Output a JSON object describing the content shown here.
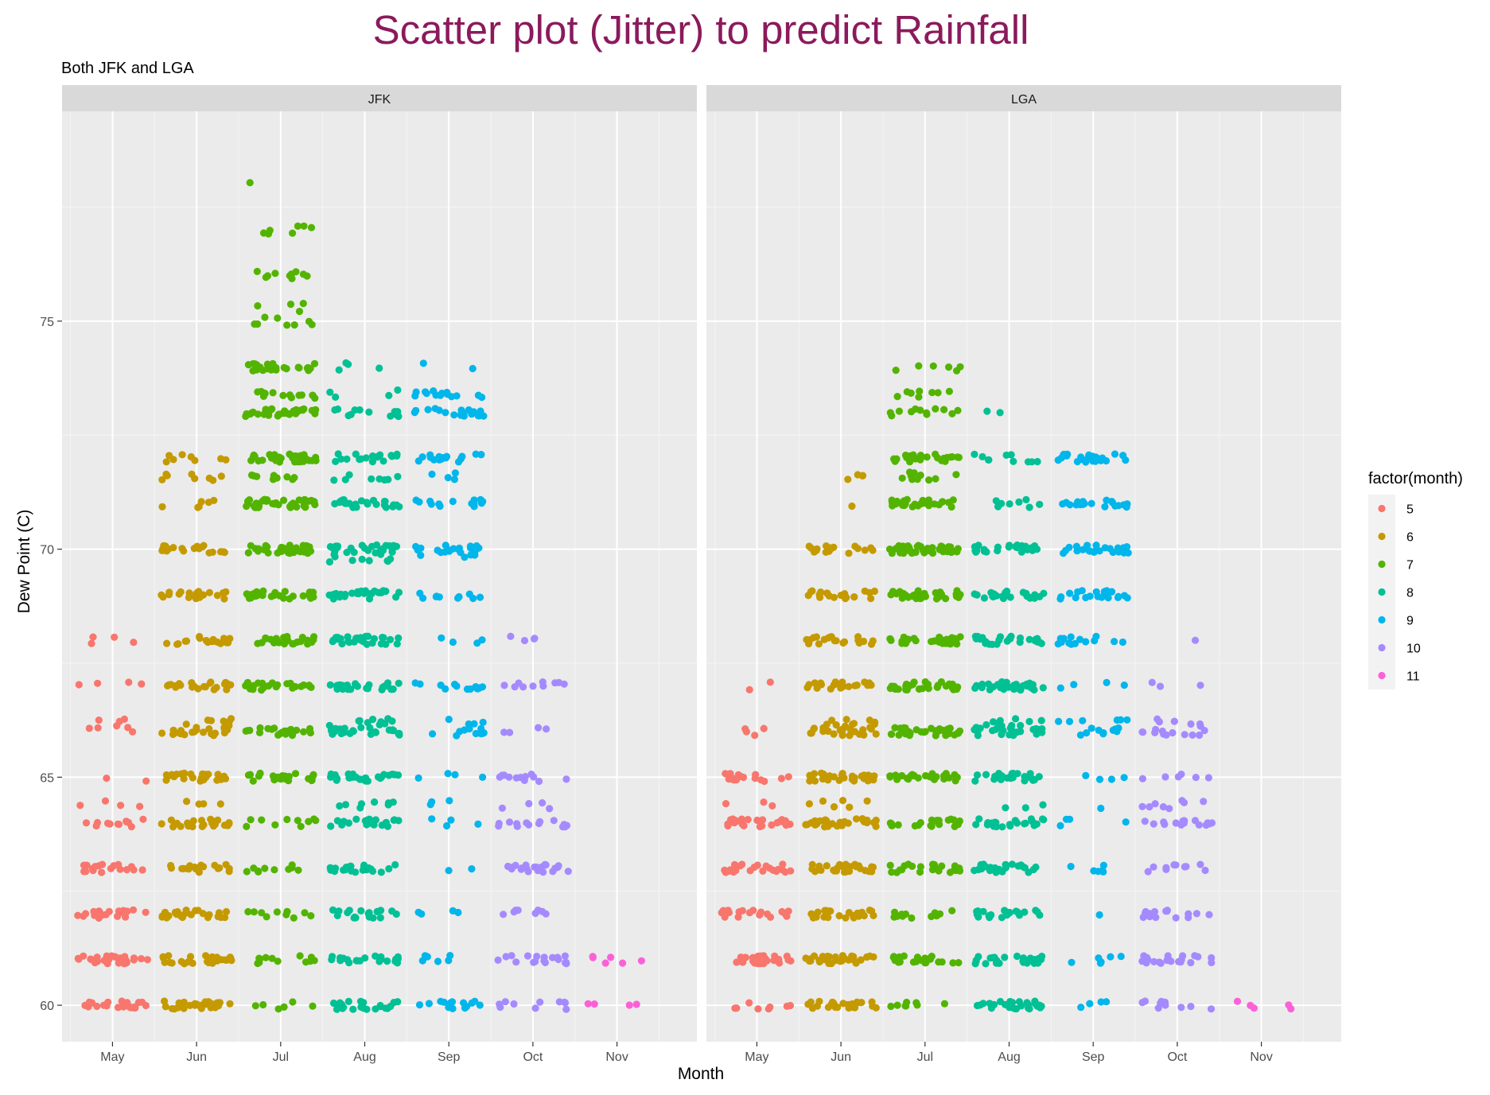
{
  "chart_data": {
    "type": "scatter",
    "title": "Scatter plot (Jitter) to predict Rainfall",
    "subtitle": "Both JFK and LGA",
    "xlabel": "Month",
    "ylabel": "Dew Point (C)",
    "ylim": [
      59.2,
      79.6
    ],
    "y_ticks": [
      60,
      65,
      70,
      75
    ],
    "categories": [
      "May",
      "Jun",
      "Jul",
      "Aug",
      "Sep",
      "Oct",
      "Nov"
    ],
    "grid": true,
    "jitter_width": 0.42,
    "legend": {
      "title": "factor(month)",
      "position": "right",
      "entries": [
        {
          "label": "5",
          "color": "#F8766D"
        },
        {
          "label": "6",
          "color": "#C49A00"
        },
        {
          "label": "7",
          "color": "#53B400"
        },
        {
          "label": "8",
          "color": "#00C094"
        },
        {
          "label": "9",
          "color": "#00B6EB"
        },
        {
          "label": "10",
          "color": "#A58AFF"
        },
        {
          "label": "11",
          "color": "#FB61D7"
        }
      ]
    },
    "panels": [
      {
        "name": "JFK",
        "series": [
          {
            "category": "May",
            "color": "#F8766D",
            "levels": [
              [
                60,
                22
              ],
              [
                61,
                30
              ],
              [
                62,
                22
              ],
              [
                63,
                18
              ],
              [
                64,
                12
              ],
              [
                64.4,
                4
              ],
              [
                65,
                2
              ],
              [
                66,
                4
              ],
              [
                66.2,
                4
              ],
              [
                67,
                4
              ],
              [
                68,
                4
              ]
            ]
          },
          {
            "category": "Jun",
            "color": "#C49A00",
            "levels": [
              [
                60,
                28
              ],
              [
                61,
                26
              ],
              [
                62,
                26
              ],
              [
                63,
                18
              ],
              [
                64,
                24
              ],
              [
                64.5,
                4
              ],
              [
                65,
                24
              ],
              [
                66,
                20
              ],
              [
                66.2,
                8
              ],
              [
                67,
                22
              ],
              [
                68,
                18
              ],
              [
                69,
                20
              ],
              [
                70,
                20
              ],
              [
                71,
                6
              ],
              [
                71.6,
                8
              ],
              [
                72,
                8
              ]
            ]
          },
          {
            "category": "Jul",
            "color": "#53B400",
            "levels": [
              [
                60,
                6
              ],
              [
                61,
                12
              ],
              [
                62,
                10
              ],
              [
                63,
                10
              ],
              [
                64,
                10
              ],
              [
                65,
                24
              ],
              [
                66,
                24
              ],
              [
                67,
                26
              ],
              [
                68,
                26
              ],
              [
                69,
                30
              ],
              [
                70,
                34
              ],
              [
                71,
                40
              ],
              [
                71.6,
                10
              ],
              [
                72,
                40
              ],
              [
                73,
                34
              ],
              [
                73.4,
                14
              ],
              [
                74,
                26
              ],
              [
                75,
                8
              ],
              [
                75.3,
                4
              ],
              [
                76,
                10
              ],
              [
                77,
                7
              ],
              [
                78,
                1
              ]
            ]
          },
          {
            "category": "Aug",
            "color": "#00C094",
            "levels": [
              [
                60,
                22
              ],
              [
                61,
                22
              ],
              [
                62,
                18
              ],
              [
                63,
                22
              ],
              [
                64,
                22
              ],
              [
                64.4,
                8
              ],
              [
                65,
                26
              ],
              [
                66,
                28
              ],
              [
                66.2,
                10
              ],
              [
                67,
                26
              ],
              [
                68,
                28
              ],
              [
                69,
                28
              ],
              [
                69.8,
                10
              ],
              [
                70,
                24
              ],
              [
                71,
                24
              ],
              [
                71.6,
                8
              ],
              [
                72,
                18
              ],
              [
                73,
                12
              ],
              [
                73.4,
                4
              ],
              [
                74,
                4
              ]
            ]
          },
          {
            "category": "Sep",
            "color": "#00B6EB",
            "levels": [
              [
                60,
                14
              ],
              [
                61,
                6
              ],
              [
                62,
                4
              ],
              [
                63,
                2
              ],
              [
                64,
                4
              ],
              [
                64.4,
                3
              ],
              [
                65,
                4
              ],
              [
                66,
                10
              ],
              [
                66.2,
                4
              ],
              [
                67,
                12
              ],
              [
                68,
                4
              ],
              [
                69,
                10
              ],
              [
                69.8,
                4
              ],
              [
                70,
                20
              ],
              [
                71,
                14
              ],
              [
                71.6,
                4
              ],
              [
                72,
                18
              ],
              [
                73,
                20
              ],
              [
                73.4,
                14
              ],
              [
                74,
                2
              ]
            ]
          },
          {
            "category": "Oct",
            "color": "#A58AFF",
            "levels": [
              [
                60,
                10
              ],
              [
                61,
                18
              ],
              [
                62,
                8
              ],
              [
                63,
                24
              ],
              [
                64,
                14
              ],
              [
                64.4,
                4
              ],
              [
                65,
                12
              ],
              [
                66,
                4
              ],
              [
                67,
                10
              ],
              [
                68,
                4
              ]
            ]
          },
          {
            "category": "Nov",
            "color": "#FB61D7",
            "levels": [
              [
                60,
                4
              ],
              [
                61,
                6
              ]
            ]
          }
        ]
      },
      {
        "name": "LGA",
        "series": [
          {
            "category": "May",
            "color": "#F8766D",
            "levels": [
              [
                60,
                8
              ],
              [
                61,
                30
              ],
              [
                62,
                22
              ],
              [
                63,
                24
              ],
              [
                64,
                24
              ],
              [
                64.4,
                3
              ],
              [
                65,
                18
              ],
              [
                66,
                4
              ],
              [
                67,
                2
              ]
            ]
          },
          {
            "category": "Jun",
            "color": "#C49A00",
            "levels": [
              [
                60,
                24
              ],
              [
                61,
                30
              ],
              [
                62,
                24
              ],
              [
                63,
                30
              ],
              [
                64,
                30
              ],
              [
                64.4,
                6
              ],
              [
                65,
                32
              ],
              [
                66,
                22
              ],
              [
                66.2,
                10
              ],
              [
                67,
                24
              ],
              [
                68,
                20
              ],
              [
                69,
                20
              ],
              [
                70,
                18
              ],
              [
                71,
                1
              ],
              [
                71.6,
                4
              ]
            ]
          },
          {
            "category": "Jul",
            "color": "#53B400",
            "levels": [
              [
                60,
                8
              ],
              [
                61,
                22
              ],
              [
                62,
                12
              ],
              [
                63,
                22
              ],
              [
                64,
                22
              ],
              [
                65,
                28
              ],
              [
                66,
                34
              ],
              [
                67,
                34
              ],
              [
                68,
                34
              ],
              [
                69,
                34
              ],
              [
                70,
                44
              ],
              [
                71,
                28
              ],
              [
                71.6,
                10
              ],
              [
                72,
                24
              ],
              [
                73,
                12
              ],
              [
                73.4,
                8
              ],
              [
                74,
                6
              ]
            ]
          },
          {
            "category": "Aug",
            "color": "#00C094",
            "levels": [
              [
                60,
                26
              ],
              [
                61,
                28
              ],
              [
                62,
                22
              ],
              [
                63,
                28
              ],
              [
                64,
                24
              ],
              [
                64.4,
                3
              ],
              [
                65,
                24
              ],
              [
                66,
                26
              ],
              [
                66.2,
                10
              ],
              [
                67,
                30
              ],
              [
                68,
                26
              ],
              [
                69,
                24
              ],
              [
                70,
                26
              ],
              [
                71,
                8
              ],
              [
                72,
                10
              ],
              [
                73,
                2
              ]
            ]
          },
          {
            "category": "Sep",
            "color": "#00B6EB",
            "levels": [
              [
                60,
                4
              ],
              [
                61,
                6
              ],
              [
                62,
                1
              ],
              [
                63,
                6
              ],
              [
                64,
                4
              ],
              [
                64.4,
                1
              ],
              [
                65,
                4
              ],
              [
                66,
                10
              ],
              [
                66.2,
                6
              ],
              [
                67,
                4
              ],
              [
                68,
                14
              ],
              [
                69,
                20
              ],
              [
                70,
                24
              ],
              [
                71,
                20
              ],
              [
                72,
                24
              ]
            ]
          },
          {
            "category": "Oct",
            "color": "#A58AFF",
            "levels": [
              [
                60,
                10
              ],
              [
                61,
                22
              ],
              [
                62,
                16
              ],
              [
                63,
                10
              ],
              [
                64,
                16
              ],
              [
                64.4,
                8
              ],
              [
                65,
                6
              ],
              [
                66,
                12
              ],
              [
                66.2,
                6
              ],
              [
                67,
                3
              ],
              [
                68,
                1
              ]
            ]
          },
          {
            "category": "Nov",
            "color": "#FB61D7",
            "levels": [
              [
                60,
                5
              ]
            ]
          }
        ]
      }
    ]
  }
}
